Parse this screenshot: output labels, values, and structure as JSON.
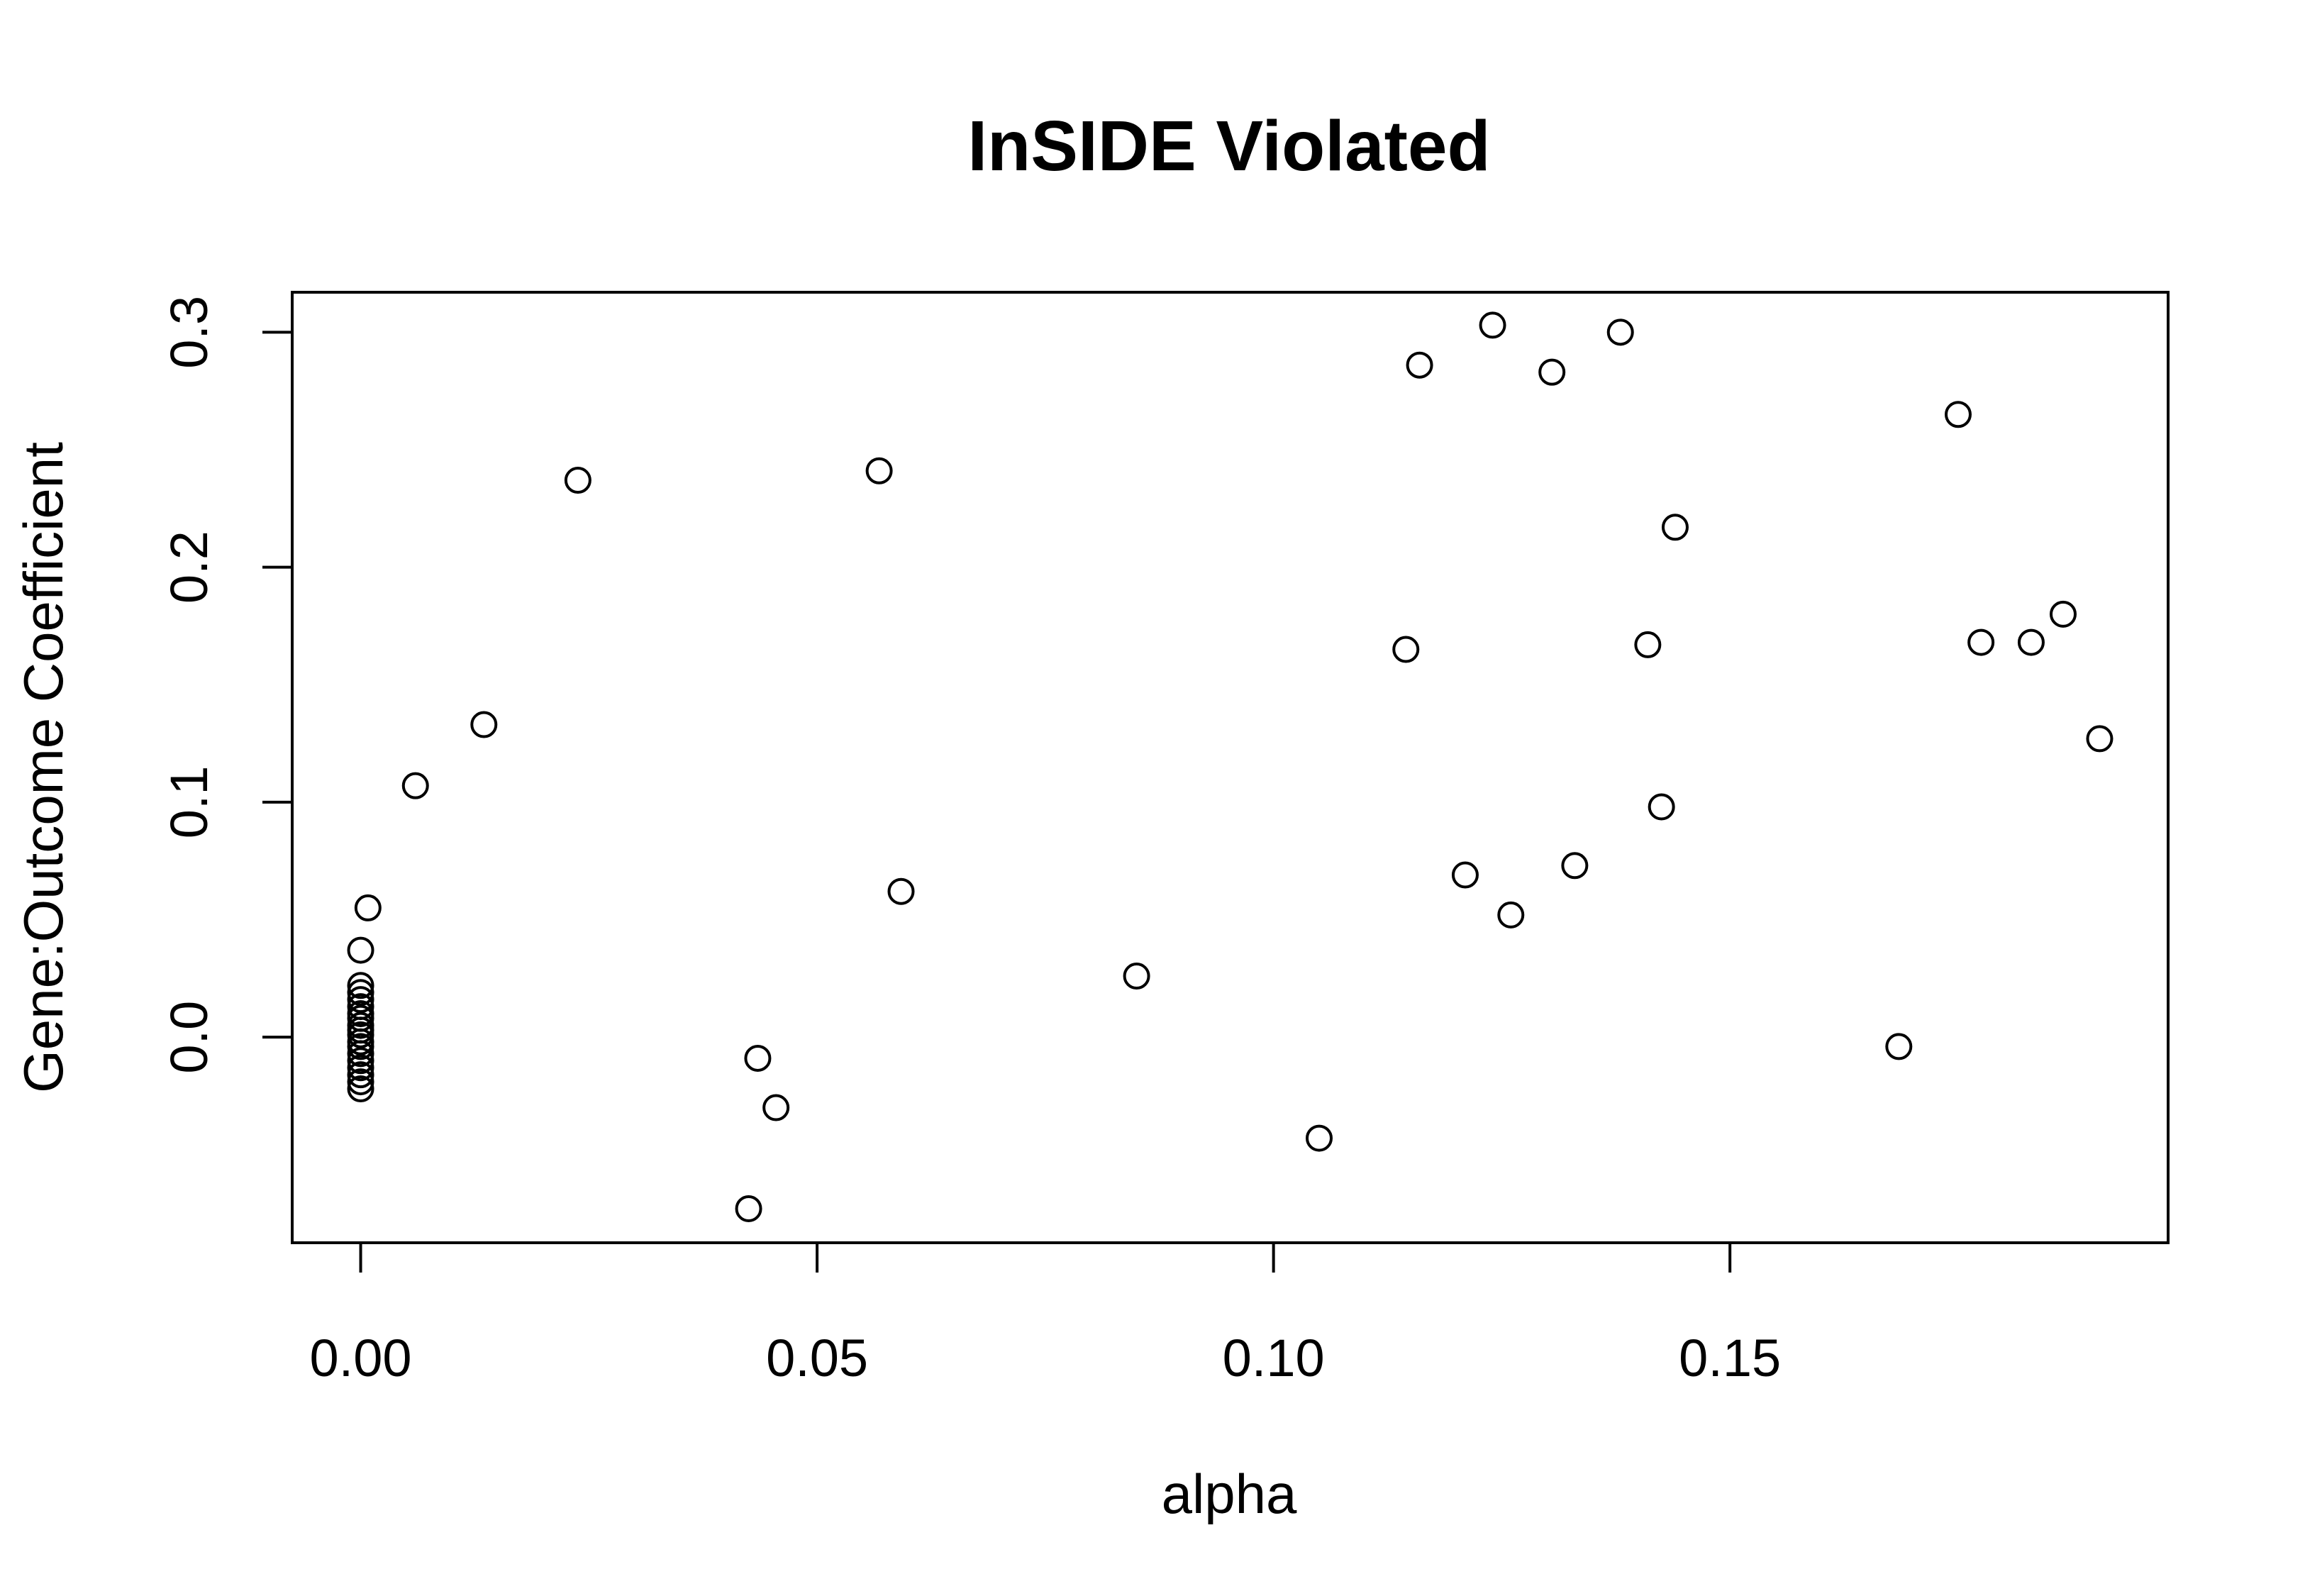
{
  "chart_data": {
    "type": "scatter",
    "title": "InSIDE Violated",
    "xlabel": "alpha",
    "ylabel": "Gene:Outcome Coefficient",
    "xlim": [
      -0.0075,
      0.198
    ],
    "ylim": [
      -0.0875,
      0.317
    ],
    "x_ticks": [
      0.0,
      0.05,
      0.1,
      0.15
    ],
    "x_tick_labels": [
      "0.00",
      "0.05",
      "0.10",
      "0.15"
    ],
    "y_ticks": [
      0.0,
      0.1,
      0.2,
      0.3
    ],
    "y_tick_labels": [
      "0.0",
      "0.1",
      "0.2",
      "0.3"
    ],
    "grid": false,
    "marker": "open-circle",
    "points": [
      {
        "x": 0.0,
        "y": 0.022
      },
      {
        "x": 0.0,
        "y": 0.019
      },
      {
        "x": 0.0,
        "y": 0.016
      },
      {
        "x": 0.0,
        "y": 0.013
      },
      {
        "x": 0.0,
        "y": 0.01
      },
      {
        "x": 0.0,
        "y": 0.008
      },
      {
        "x": 0.0,
        "y": 0.005
      },
      {
        "x": 0.0,
        "y": 0.003
      },
      {
        "x": 0.0,
        "y": 0.001
      },
      {
        "x": 0.0,
        "y": -0.002
      },
      {
        "x": 0.0,
        "y": -0.004
      },
      {
        "x": 0.0,
        "y": -0.007
      },
      {
        "x": 0.0,
        "y": -0.01
      },
      {
        "x": 0.0,
        "y": -0.013
      },
      {
        "x": 0.0,
        "y": -0.016
      },
      {
        "x": 0.0,
        "y": -0.019
      },
      {
        "x": 0.0,
        "y": -0.022
      },
      {
        "x": 0.0,
        "y": 0.037
      },
      {
        "x": 0.0008,
        "y": 0.055
      },
      {
        "x": 0.006,
        "y": 0.107
      },
      {
        "x": 0.0135,
        "y": 0.133
      },
      {
        "x": 0.0238,
        "y": 0.237
      },
      {
        "x": 0.0425,
        "y": -0.073
      },
      {
        "x": 0.0435,
        "y": -0.009
      },
      {
        "x": 0.0455,
        "y": -0.03
      },
      {
        "x": 0.0568,
        "y": 0.241
      },
      {
        "x": 0.0592,
        "y": 0.062
      },
      {
        "x": 0.085,
        "y": 0.026
      },
      {
        "x": 0.105,
        "y": -0.043
      },
      {
        "x": 0.1145,
        "y": 0.165
      },
      {
        "x": 0.116,
        "y": 0.286
      },
      {
        "x": 0.121,
        "y": 0.069
      },
      {
        "x": 0.124,
        "y": 0.303
      },
      {
        "x": 0.126,
        "y": 0.052
      },
      {
        "x": 0.1305,
        "y": 0.283
      },
      {
        "x": 0.133,
        "y": 0.073
      },
      {
        "x": 0.138,
        "y": 0.3
      },
      {
        "x": 0.141,
        "y": 0.167
      },
      {
        "x": 0.1425,
        "y": 0.098
      },
      {
        "x": 0.144,
        "y": 0.217
      },
      {
        "x": 0.1685,
        "y": -0.004
      },
      {
        "x": 0.175,
        "y": 0.265
      },
      {
        "x": 0.1775,
        "y": 0.168
      },
      {
        "x": 0.183,
        "y": 0.168
      },
      {
        "x": 0.1865,
        "y": 0.18
      },
      {
        "x": 0.1905,
        "y": 0.127
      }
    ]
  }
}
